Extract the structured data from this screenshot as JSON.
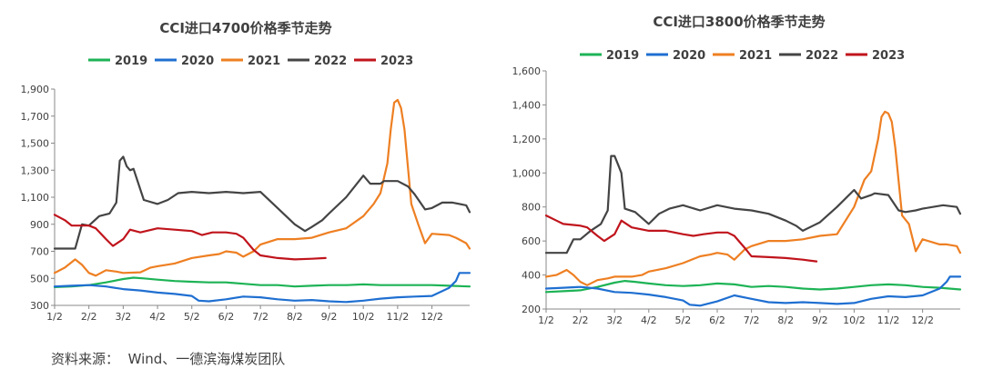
{
  "source": {
    "label": "资料来源：",
    "text": "Wind、一德滨海煤炭团队"
  },
  "colors": {
    "2019": "#1db355",
    "2020": "#1f6fd1",
    "2021": "#ee7f22",
    "2022": "#444444",
    "2023": "#c0141c"
  },
  "chart_data": [
    {
      "type": "line",
      "title": "CCI进口4700价格季节走势",
      "xlabel": "",
      "ylabel": "",
      "x_ticks": [
        "1/2",
        "2/2",
        "3/2",
        "4/2",
        "5/2",
        "6/2",
        "7/2",
        "8/2",
        "9/2",
        "10/2",
        "11/2",
        "12/2"
      ],
      "x_range": [
        0,
        12.1
      ],
      "ylim": [
        300,
        1900
      ],
      "y_ticks": [
        300,
        500,
        700,
        900,
        1100,
        1300,
        1500,
        1700,
        1900
      ],
      "y_tick_labels": [
        "300",
        "500",
        "700",
        "900",
        "1,100",
        "1,300",
        "1,500",
        "1,700",
        "1,900"
      ],
      "legend": [
        "2019",
        "2020",
        "2021",
        "2022",
        "2023"
      ],
      "legend_position": "top",
      "series": [
        {
          "name": "2019",
          "x": [
            0,
            0.5,
            1,
            1.5,
            2,
            2.3,
            2.6,
            3,
            3.5,
            4,
            4.5,
            5,
            5.5,
            6,
            6.5,
            7,
            7.5,
            8,
            8.5,
            9,
            9.5,
            10,
            10.5,
            11,
            11.5,
            12.1
          ],
          "y": [
            435,
            440,
            450,
            470,
            495,
            505,
            500,
            490,
            480,
            475,
            470,
            470,
            460,
            450,
            450,
            440,
            445,
            450,
            450,
            455,
            450,
            450,
            450,
            450,
            445,
            440
          ]
        },
        {
          "name": "2020",
          "x": [
            0,
            0.5,
            1,
            1.5,
            2,
            2.5,
            3,
            3.5,
            4,
            4.2,
            4.5,
            5,
            5.5,
            6,
            6.5,
            7,
            7.5,
            8,
            8.5,
            9,
            9.5,
            10,
            10.5,
            11,
            11.5,
            11.7,
            11.8,
            12.1
          ],
          "y": [
            440,
            445,
            450,
            440,
            420,
            410,
            395,
            385,
            370,
            335,
            330,
            345,
            365,
            360,
            345,
            335,
            340,
            330,
            325,
            335,
            350,
            360,
            365,
            370,
            430,
            480,
            540,
            540
          ]
        },
        {
          "name": "2021",
          "x": [
            0,
            0.3,
            0.6,
            0.8,
            1,
            1.2,
            1.5,
            1.8,
            2,
            2.5,
            2.8,
            3,
            3.5,
            4,
            4.5,
            4.8,
            5,
            5.3,
            5.5,
            5.8,
            6,
            6.5,
            7,
            7.5,
            8,
            8.5,
            9,
            9.3,
            9.5,
            9.7,
            9.8,
            9.9,
            10,
            10.1,
            10.2,
            10.4,
            10.6,
            10.8,
            11,
            11.5,
            11.7,
            12,
            12.1
          ],
          "y": [
            540,
            580,
            640,
            600,
            540,
            520,
            560,
            550,
            540,
            545,
            580,
            590,
            610,
            650,
            670,
            680,
            700,
            690,
            660,
            700,
            750,
            790,
            790,
            800,
            840,
            870,
            960,
            1050,
            1130,
            1350,
            1600,
            1800,
            1820,
            1760,
            1600,
            1050,
            900,
            760,
            830,
            820,
            800,
            760,
            720
          ]
        },
        {
          "name": "2022",
          "x": [
            0,
            0.5,
            0.6,
            0.8,
            1,
            1.3,
            1.6,
            1.8,
            1.9,
            2,
            2.1,
            2.2,
            2.3,
            2.6,
            3,
            3.3,
            3.6,
            4,
            4.5,
            5,
            5.5,
            6,
            6.5,
            7,
            7.3,
            7.5,
            7.8,
            8,
            8.5,
            9,
            9.2,
            9.5,
            9.6,
            10,
            10.3,
            10.5,
            10.8,
            11,
            11.3,
            11.6,
            12,
            12.1
          ],
          "y": [
            720,
            720,
            720,
            900,
            890,
            960,
            980,
            1060,
            1370,
            1400,
            1330,
            1300,
            1310,
            1080,
            1050,
            1080,
            1130,
            1140,
            1130,
            1140,
            1130,
            1140,
            1020,
            900,
            850,
            880,
            930,
            980,
            1100,
            1260,
            1200,
            1200,
            1220,
            1220,
            1180,
            1120,
            1010,
            1020,
            1060,
            1060,
            1040,
            990
          ]
        },
        {
          "name": "2023",
          "x": [
            0,
            0.3,
            0.5,
            1,
            1.2,
            1.5,
            1.7,
            2,
            2.2,
            2.5,
            3,
            3.5,
            4,
            4.3,
            4.6,
            5,
            5.3,
            5.5,
            5.8,
            6,
            6.5,
            7,
            7.5,
            7.9
          ],
          "y": [
            970,
            930,
            890,
            890,
            870,
            790,
            740,
            790,
            860,
            840,
            870,
            860,
            850,
            820,
            840,
            840,
            830,
            800,
            710,
            670,
            650,
            640,
            645,
            650
          ]
        }
      ]
    },
    {
      "type": "line",
      "title": "CCI进口3800价格季节走势",
      "xlabel": "",
      "ylabel": "",
      "x_ticks": [
        "1/2",
        "2/2",
        "3/2",
        "4/2",
        "5/2",
        "6/2",
        "7/2",
        "8/2",
        "9/2",
        "10/2",
        "11/2",
        "12/2"
      ],
      "x_range": [
        0,
        12.1
      ],
      "ylim": [
        200,
        1600
      ],
      "y_ticks": [
        200,
        400,
        600,
        800,
        1000,
        1200,
        1400,
        1600
      ],
      "y_tick_labels": [
        "200",
        "400",
        "600",
        "800",
        "1,000",
        "1,200",
        "1,400",
        "1,600"
      ],
      "legend": [
        "2019",
        "2020",
        "2021",
        "2022",
        "2023"
      ],
      "legend_position": "top",
      "series": [
        {
          "name": "2019",
          "x": [
            0,
            0.5,
            1,
            1.5,
            2,
            2.3,
            2.6,
            3,
            3.5,
            4,
            4.5,
            5,
            5.5,
            6,
            6.5,
            7,
            7.5,
            8,
            8.5,
            9,
            9.5,
            10,
            10.5,
            11,
            11.5,
            12.1
          ],
          "y": [
            300,
            305,
            310,
            330,
            355,
            365,
            360,
            350,
            340,
            335,
            340,
            350,
            345,
            330,
            335,
            330,
            320,
            315,
            320,
            330,
            340,
            345,
            340,
            330,
            325,
            315
          ]
        },
        {
          "name": "2020",
          "x": [
            0,
            0.5,
            1,
            1.5,
            2,
            2.5,
            3,
            3.5,
            4,
            4.2,
            4.5,
            5,
            5.5,
            6,
            6.5,
            7,
            7.5,
            8,
            8.5,
            9,
            9.5,
            10,
            10.5,
            11,
            11.5,
            11.7,
            11.8,
            12.1
          ],
          "y": [
            320,
            325,
            330,
            320,
            300,
            295,
            285,
            270,
            250,
            225,
            220,
            245,
            280,
            260,
            240,
            235,
            240,
            235,
            230,
            235,
            260,
            275,
            270,
            280,
            320,
            360,
            390,
            390
          ]
        },
        {
          "name": "2021",
          "x": [
            0,
            0.3,
            0.6,
            0.8,
            1,
            1.2,
            1.5,
            1.8,
            2,
            2.5,
            2.8,
            3,
            3.5,
            4,
            4.5,
            4.8,
            5,
            5.3,
            5.5,
            5.8,
            6,
            6.5,
            7,
            7.5,
            8,
            8.5,
            9,
            9.3,
            9.5,
            9.7,
            9.8,
            9.9,
            10,
            10.1,
            10.2,
            10.4,
            10.6,
            10.8,
            11,
            11.5,
            11.7,
            12,
            12.1
          ],
          "y": [
            390,
            400,
            430,
            400,
            360,
            340,
            370,
            380,
            390,
            390,
            400,
            420,
            440,
            470,
            510,
            520,
            530,
            520,
            490,
            550,
            570,
            600,
            600,
            610,
            630,
            640,
            800,
            960,
            1010,
            1200,
            1330,
            1360,
            1350,
            1300,
            1150,
            750,
            700,
            540,
            610,
            580,
            580,
            570,
            530
          ]
        },
        {
          "name": "2022",
          "x": [
            0,
            0.5,
            0.6,
            0.8,
            1,
            1.3,
            1.6,
            1.8,
            1.9,
            2,
            2.1,
            2.2,
            2.3,
            2.6,
            3,
            3.3,
            3.6,
            4,
            4.5,
            5,
            5.5,
            6,
            6.5,
            7,
            7.3,
            7.5,
            7.8,
            8,
            8.5,
            9,
            9.2,
            9.5,
            9.6,
            10,
            10.3,
            10.5,
            10.8,
            11,
            11.3,
            11.6,
            12,
            12.1
          ],
          "y": [
            530,
            530,
            530,
            610,
            610,
            660,
            700,
            780,
            1100,
            1100,
            1050,
            1000,
            790,
            770,
            700,
            760,
            790,
            810,
            780,
            810,
            790,
            780,
            760,
            720,
            690,
            660,
            690,
            710,
            800,
            900,
            850,
            870,
            880,
            870,
            780,
            770,
            780,
            790,
            800,
            810,
            800,
            760
          ]
        },
        {
          "name": "2023",
          "x": [
            0,
            0.3,
            0.5,
            1,
            1.2,
            1.5,
            1.7,
            2,
            2.2,
            2.5,
            3,
            3.5,
            4,
            4.3,
            4.6,
            5,
            5.3,
            5.5,
            5.8,
            6,
            6.5,
            7,
            7.5,
            7.9
          ],
          "y": [
            750,
            720,
            700,
            690,
            680,
            630,
            600,
            640,
            720,
            680,
            660,
            660,
            640,
            630,
            640,
            650,
            650,
            630,
            560,
            510,
            505,
            500,
            490,
            480
          ]
        }
      ]
    }
  ]
}
